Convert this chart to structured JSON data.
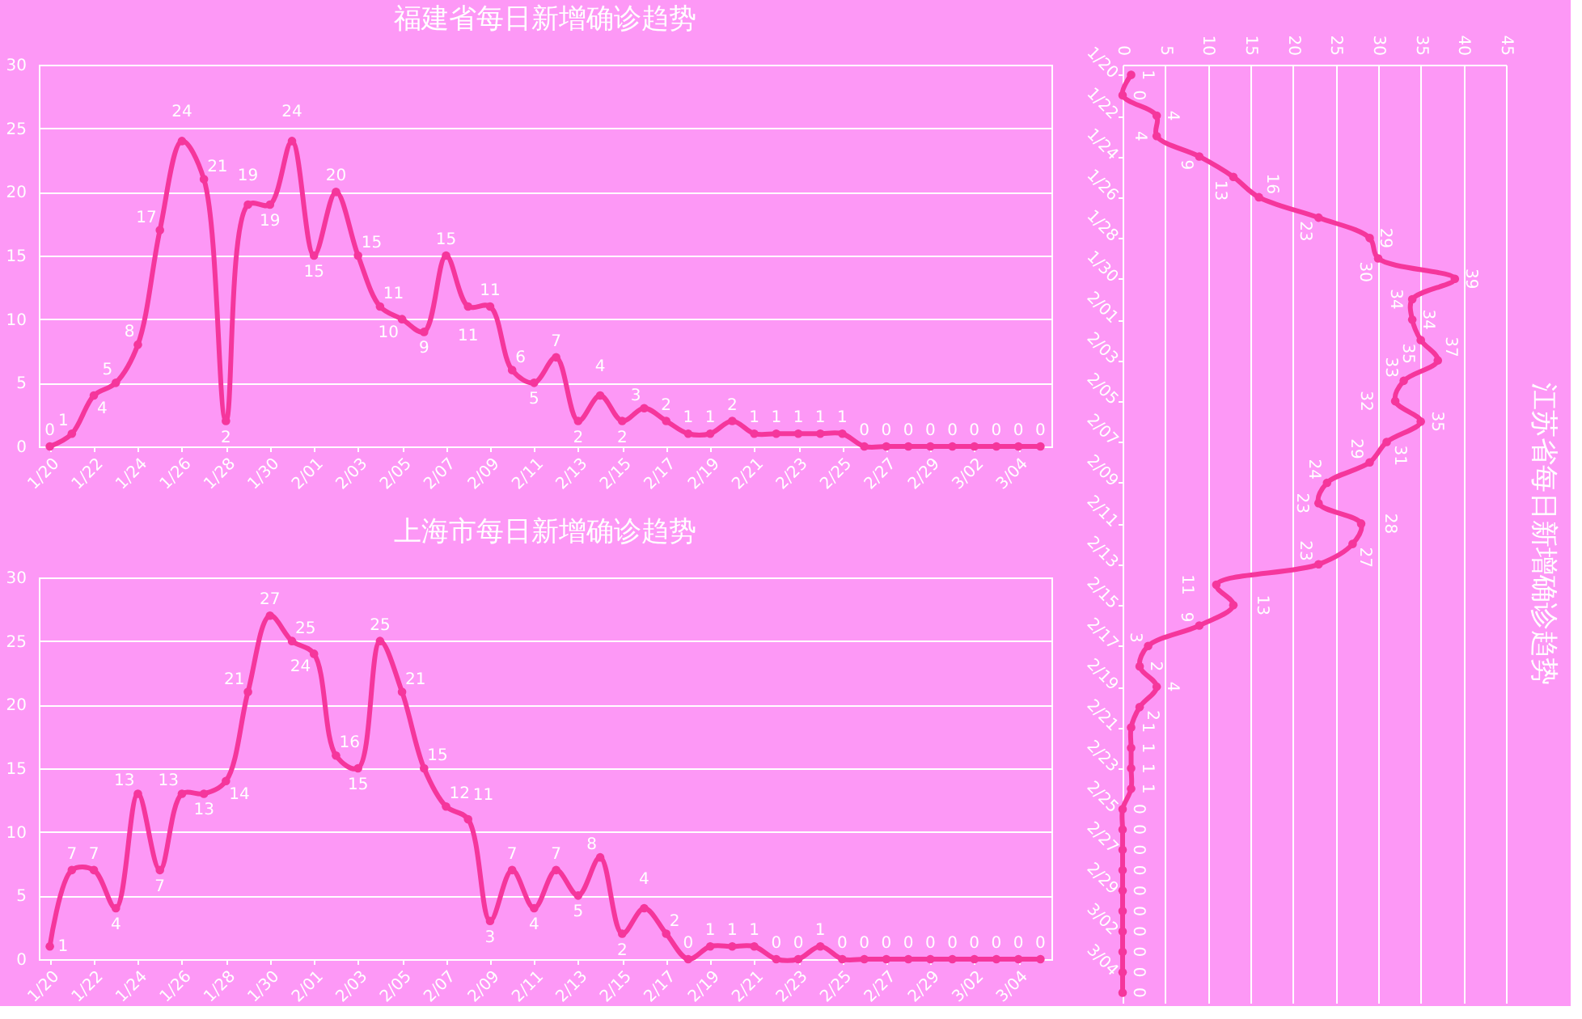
{
  "chart_data": [
    {
      "type": "line",
      "title": "福建省每日新增确诊趋势",
      "categories": [
        "1/20",
        null,
        "1/22",
        null,
        "1/24",
        null,
        "1/26",
        null,
        "1/28",
        null,
        "1/30",
        null,
        "2/01",
        null,
        "2/03",
        null,
        "2/05",
        null,
        "2/07",
        null,
        "2/09",
        null,
        "2/11",
        null,
        "2/13",
        null,
        "2/15",
        null,
        "2/17",
        null,
        "2/19",
        null,
        "2/21",
        null,
        "2/23",
        null,
        "2/25",
        null,
        "2/27",
        null,
        "2/29",
        null,
        "3/02",
        null,
        "3/04",
        null
      ],
      "series": [
        {
          "color": "#f5369c",
          "values": [
            0,
            1,
            4,
            5,
            8,
            17,
            24,
            21,
            2,
            19,
            19,
            24,
            15,
            20,
            15,
            11,
            10,
            9,
            15,
            11,
            11,
            6,
            5,
            7,
            2,
            4,
            2,
            3,
            2,
            1,
            1,
            2,
            1,
            1,
            1,
            1,
            1,
            0,
            0,
            0,
            0,
            0,
            0,
            0,
            0,
            0
          ]
        }
      ],
      "ylim": [
        0,
        30
      ],
      "yticks": [
        0,
        5,
        10,
        15,
        20,
        25,
        30
      ],
      "grid": "y",
      "marker": "circle",
      "data_labels": true
    },
    {
      "type": "line",
      "title": "上海市每日新增确诊趋势",
      "categories": [
        "1/20",
        null,
        "1/22",
        null,
        "1/24",
        null,
        "1/26",
        null,
        "1/28",
        null,
        "1/30",
        null,
        "2/01",
        null,
        "2/03",
        null,
        "2/05",
        null,
        "2/07",
        null,
        "2/09",
        null,
        "2/11",
        null,
        "2/13",
        null,
        "2/15",
        null,
        "2/17",
        null,
        "2/19",
        null,
        "2/21",
        null,
        "2/23",
        null,
        "2/25",
        null,
        "2/27",
        null,
        "2/29",
        null,
        "3/02",
        null,
        "3/04",
        null
      ],
      "series": [
        {
          "color": "#f5369c",
          "values": [
            1,
            7,
            7,
            4,
            13,
            7,
            13,
            13,
            14,
            21,
            27,
            25,
            24,
            16,
            15,
            25,
            21,
            15,
            12,
            11,
            3,
            7,
            4,
            7,
            5,
            8,
            2,
            4,
            2,
            0,
            1,
            1,
            1,
            0,
            0,
            1,
            0,
            0,
            0,
            0,
            0,
            0,
            0,
            0,
            0,
            0
          ]
        }
      ],
      "ylim": [
        0,
        30
      ],
      "yticks": [
        0,
        5,
        10,
        15,
        20,
        25,
        30
      ],
      "grid": "y",
      "marker": "circle",
      "data_labels": true
    },
    {
      "type": "line",
      "title": "江苏省每日新增确诊趋势",
      "orientation": "horizontal",
      "categories": [
        "1/20",
        null,
        "1/22",
        null,
        "1/24",
        null,
        "1/26",
        null,
        "1/28",
        null,
        "1/30",
        null,
        "2/01",
        null,
        "2/03",
        null,
        "2/05",
        null,
        "2/07",
        null,
        "2/09",
        null,
        "2/11",
        null,
        "2/13",
        null,
        "2/15",
        null,
        "2/17",
        null,
        "2/19",
        null,
        "2/21",
        null,
        "2/23",
        null,
        "2/25",
        null,
        "2/27",
        null,
        "2/29",
        null,
        "3/02",
        null,
        "3/04",
        null
      ],
      "series": [
        {
          "color": "#f5369c",
          "values": [
            1,
            0,
            4,
            4,
            9,
            13,
            16,
            23,
            29,
            30,
            39,
            34,
            34,
            35,
            37,
            33,
            32,
            35,
            31,
            29,
            24,
            23,
            28,
            27,
            23,
            11,
            13,
            9,
            3,
            2,
            4,
            2,
            1,
            1,
            1,
            1,
            0,
            0,
            0,
            0,
            0,
            0,
            0,
            0,
            0,
            0
          ]
        }
      ],
      "xlim": [
        0,
        45
      ],
      "xticks": [
        0,
        5,
        10,
        15,
        20,
        25,
        30,
        35,
        40,
        45
      ],
      "grid": "x",
      "marker": "circle",
      "data_labels": true
    }
  ]
}
